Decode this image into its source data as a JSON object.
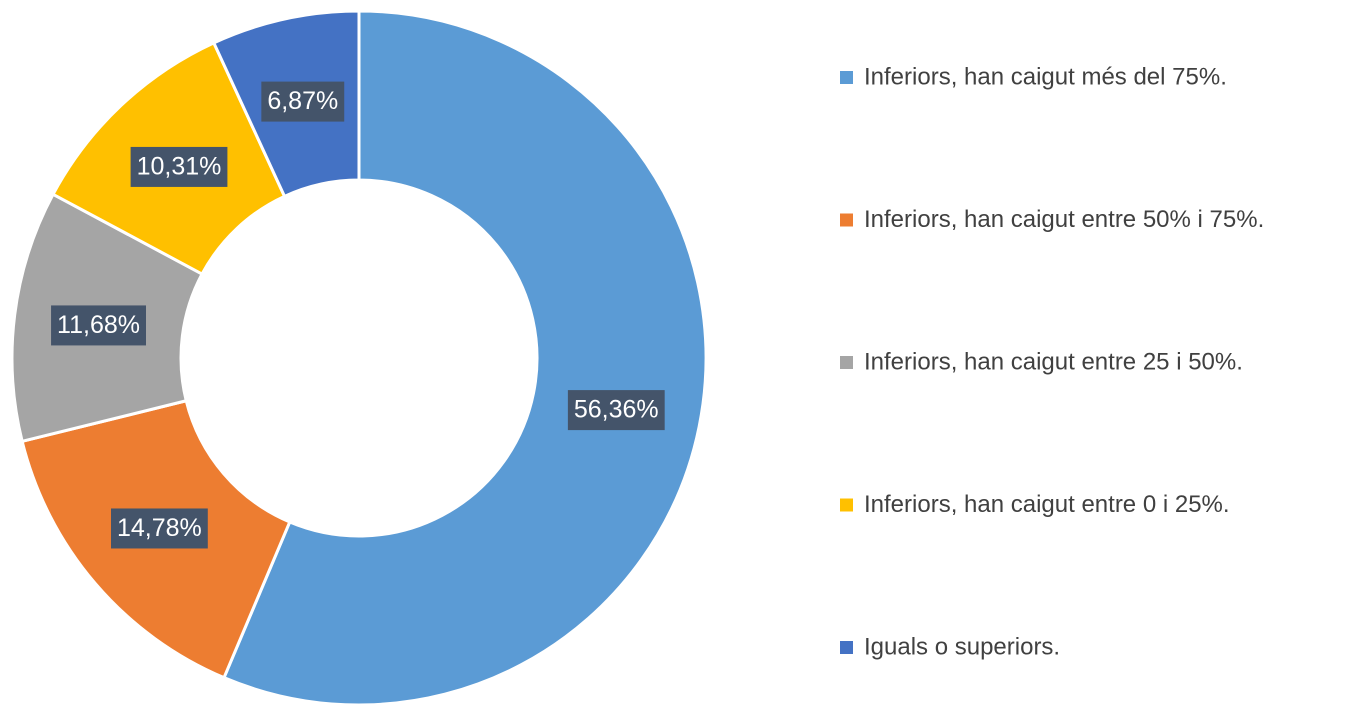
{
  "chart_data": {
    "type": "donut",
    "categories": [
      "Inferiors, han caigut més del 75%.",
      "Inferiors, han caigut entre 50% i 75%.",
      "Inferiors, han caigut entre 25 i 50%.",
      "Inferiors, han caigut entre 0 i 25%.",
      "Iguals o superiors."
    ],
    "values": [
      56.36,
      14.78,
      11.68,
      10.31,
      6.87
    ],
    "value_labels": [
      "56,36%",
      "14,78%",
      "11,68%",
      "10,31%",
      "6,87%"
    ],
    "colors": [
      "#5b9bd5",
      "#ed7d31",
      "#a5a5a5",
      "#ffc000",
      "#4472c4"
    ],
    "legend": "right"
  }
}
